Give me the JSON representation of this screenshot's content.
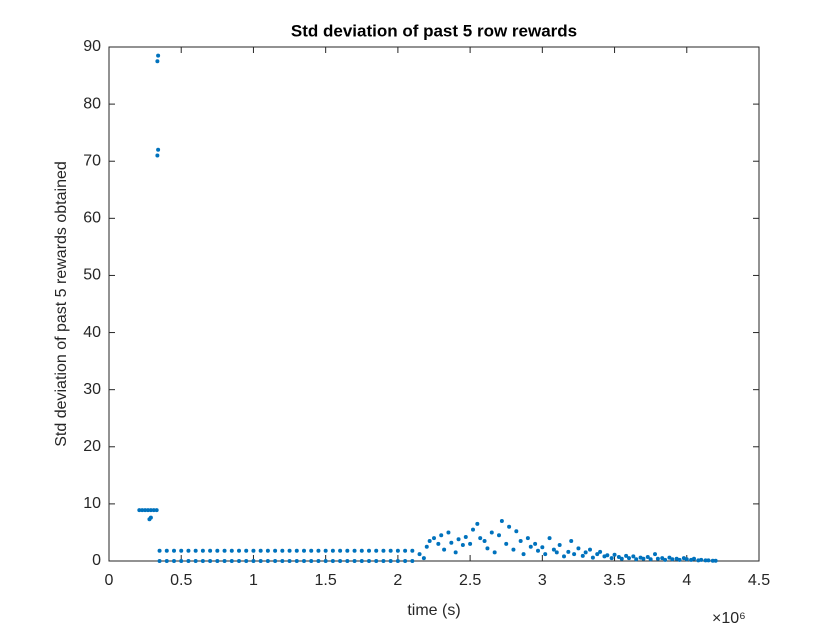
{
  "chart_data": {
    "type": "scatter",
    "title": "Std deviation of past 5 row rewards",
    "x_label": "time (s)",
    "y_label": "Std deviation of past 5 rewards obtained",
    "x_exponent_label": "×10⁶",
    "color": "#0072bd",
    "xlim": [
      0,
      4.5
    ],
    "ylim": [
      0,
      90
    ],
    "xticks": [
      0,
      0.5,
      1,
      1.5,
      2,
      2.5,
      3,
      3.5,
      4,
      4.5
    ],
    "yticks": [
      0,
      10,
      20,
      30,
      40,
      50,
      60,
      70,
      80,
      90
    ],
    "grid": false,
    "x": [
      0.21,
      0.23,
      0.25,
      0.27,
      0.29,
      0.31,
      0.33,
      0.28,
      0.29,
      0.335,
      0.34,
      0.335,
      0.34,
      0.35,
      0.4,
      0.45,
      0.5,
      0.55,
      0.6,
      0.65,
      0.7,
      0.75,
      0.8,
      0.85,
      0.9,
      0.95,
      1,
      1.05,
      1.1,
      1.15,
      1.2,
      1.25,
      1.3,
      1.35,
      1.4,
      1.45,
      1.5,
      1.55,
      1.6,
      1.65,
      1.7,
      1.75,
      1.8,
      1.85,
      1.9,
      1.95,
      2,
      2.05,
      2.1,
      0.35,
      0.4,
      0.45,
      0.5,
      0.55,
      0.6,
      0.65,
      0.7,
      0.75,
      0.8,
      0.85,
      0.9,
      0.95,
      1,
      1.05,
      1.1,
      1.15,
      1.2,
      1.25,
      1.3,
      1.35,
      1.4,
      1.45,
      1.5,
      1.55,
      1.6,
      1.65,
      1.7,
      1.75,
      1.8,
      1.85,
      1.9,
      1.95,
      2,
      2.05,
      2.1,
      2.15,
      2.18,
      2.2,
      2.22,
      2.25,
      2.28,
      2.3,
      2.32,
      2.35,
      2.37,
      2.4,
      2.42,
      2.45,
      2.47,
      2.5,
      2.52,
      2.55,
      2.57,
      2.6,
      2.62,
      2.65,
      2.67,
      2.7,
      2.72,
      2.75,
      2.77,
      2.8,
      2.82,
      2.85,
      2.87,
      2.9,
      2.92,
      2.95,
      2.97,
      3.0,
      3.02,
      3.05,
      3.08,
      3.1,
      3.12,
      3.15,
      3.18,
      3.2,
      3.22,
      3.25,
      3.28,
      3.3,
      3.33,
      3.35,
      3.38,
      3.4,
      3.43,
      3.45,
      3.48,
      3.5,
      3.53,
      3.55,
      3.58,
      3.6,
      3.63,
      3.65,
      3.68,
      3.7,
      3.73,
      3.75,
      3.78,
      3.8,
      3.83,
      3.85,
      3.88,
      3.9,
      3.93,
      3.95,
      3.98,
      4.0,
      4.03,
      4.05,
      4.08,
      4.1,
      4.13,
      4.15,
      4.18,
      4.2
    ],
    "values": [
      8.9,
      8.9,
      8.9,
      8.9,
      8.9,
      8.9,
      8.9,
      7.3,
      7.6,
      87.5,
      88.5,
      71,
      72,
      1.8,
      1.8,
      1.8,
      1.8,
      1.8,
      1.8,
      1.8,
      1.8,
      1.8,
      1.8,
      1.8,
      1.8,
      1.8,
      1.8,
      1.8,
      1.8,
      1.8,
      1.8,
      1.8,
      1.8,
      1.8,
      1.8,
      1.8,
      1.8,
      1.8,
      1.8,
      1.8,
      1.8,
      1.8,
      1.8,
      1.8,
      1.8,
      1.8,
      1.8,
      1.8,
      1.8,
      0,
      0,
      0,
      0,
      0,
      0,
      0,
      0,
      0,
      0,
      0,
      0,
      0,
      0,
      0,
      0,
      0,
      0,
      0,
      0,
      0,
      0,
      0,
      0,
      0,
      0,
      0,
      0,
      0,
      0,
      0,
      0,
      0,
      0,
      0,
      0,
      1.2,
      0.5,
      2.5,
      3.5,
      4,
      3,
      4.5,
      2,
      5,
      3.2,
      1.5,
      3.8,
      2.8,
      4.2,
      3,
      5.5,
      6.5,
      4,
      3.5,
      2.2,
      5,
      1.5,
      4.5,
      7,
      3,
      6,
      2,
      5.2,
      3.5,
      1.2,
      4,
      2.5,
      3,
      1.8,
      2.4,
      1.2,
      4,
      2,
      1.5,
      2.8,
      0.8,
      1.6,
      3.5,
      1.2,
      2.2,
      0.9,
      1.5,
      2,
      0.6,
      1.2,
      1.6,
      0.8,
      1,
      0.5,
      1.1,
      0.7,
      0.4,
      0.9,
      0.5,
      0.8,
      0.3,
      0.6,
      0.4,
      0.7,
      0.3,
      1.2,
      0.4,
      0.5,
      0.2,
      0.6,
      0.3,
      0.4,
      0.2,
      0.5,
      0.3,
      0.2,
      0.4,
      0.1,
      0.2,
      0.1,
      0.1,
      0.05,
      0.05
    ]
  }
}
